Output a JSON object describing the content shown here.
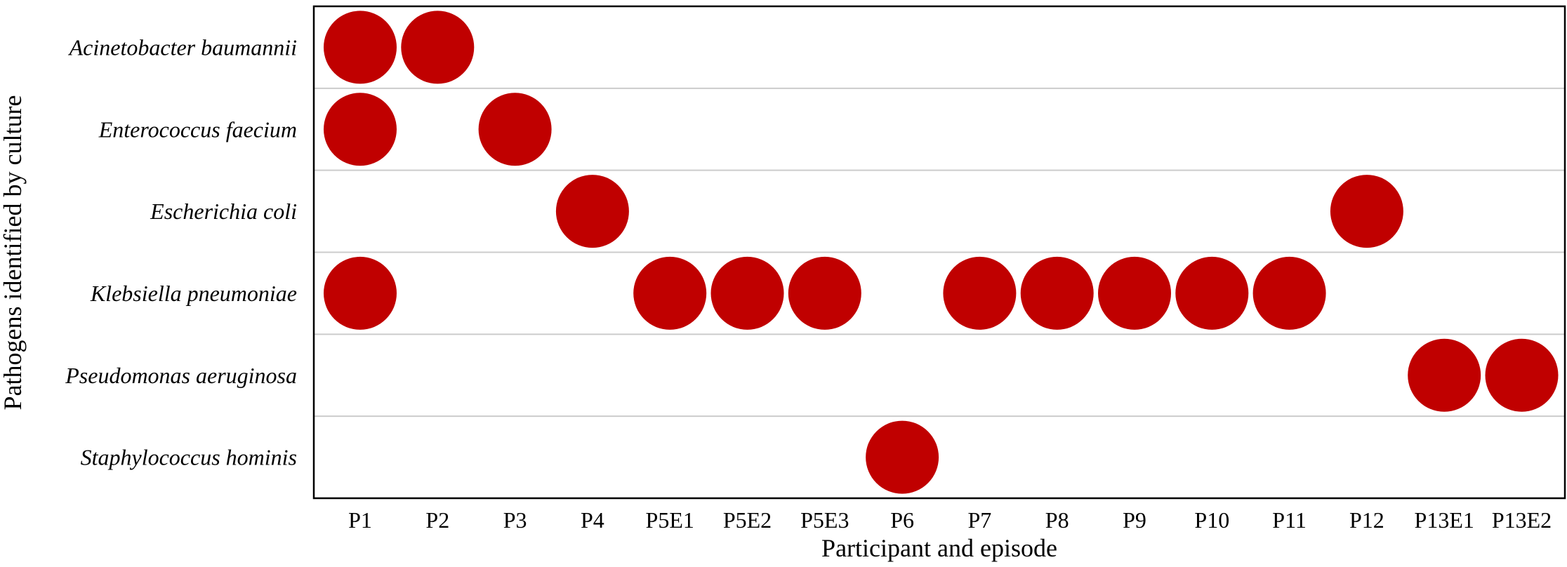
{
  "chart_data": {
    "type": "scatter",
    "title": "",
    "xlabel": "Participant and episode",
    "ylabel": "Pathogens identified by culture",
    "x_categories": [
      "P1",
      "P2",
      "P3",
      "P4",
      "P5E1",
      "P5E2",
      "P5E3",
      "P6",
      "P7",
      "P8",
      "P9",
      "P10",
      "P11",
      "P12",
      "P13E1",
      "P13E2"
    ],
    "y_categories": [
      "Acinetobacter baumannii",
      "Enterococcus faecium",
      "Escherichia coli",
      "Klebsiella pneumoniae",
      "Pseudomonas aeruginosa",
      "Staphylococcus hominis"
    ],
    "points": [
      {
        "x": "P1",
        "y": "Acinetobacter baumannii"
      },
      {
        "x": "P2",
        "y": "Acinetobacter baumannii"
      },
      {
        "x": "P1",
        "y": "Enterococcus faecium"
      },
      {
        "x": "P3",
        "y": "Enterococcus faecium"
      },
      {
        "x": "P4",
        "y": "Escherichia coli"
      },
      {
        "x": "P12",
        "y": "Escherichia coli"
      },
      {
        "x": "P1",
        "y": "Klebsiella pneumoniae"
      },
      {
        "x": "P5E1",
        "y": "Klebsiella pneumoniae"
      },
      {
        "x": "P5E2",
        "y": "Klebsiella pneumoniae"
      },
      {
        "x": "P5E3",
        "y": "Klebsiella pneumoniae"
      },
      {
        "x": "P7",
        "y": "Klebsiella pneumoniae"
      },
      {
        "x": "P8",
        "y": "Klebsiella pneumoniae"
      },
      {
        "x": "P9",
        "y": "Klebsiella pneumoniae"
      },
      {
        "x": "P10",
        "y": "Klebsiella pneumoniae"
      },
      {
        "x": "P11",
        "y": "Klebsiella pneumoniae"
      },
      {
        "x": "P13E1",
        "y": "Pseudomonas aeruginosa"
      },
      {
        "x": "P13E2",
        "y": "Pseudomonas aeruginosa"
      },
      {
        "x": "P6",
        "y": "Staphylococcus hominis"
      }
    ],
    "grid": "horizontal",
    "legend": "none",
    "colors": {
      "marker": "#c00000",
      "grid": "#cccccc",
      "frame": "#000000"
    }
  }
}
